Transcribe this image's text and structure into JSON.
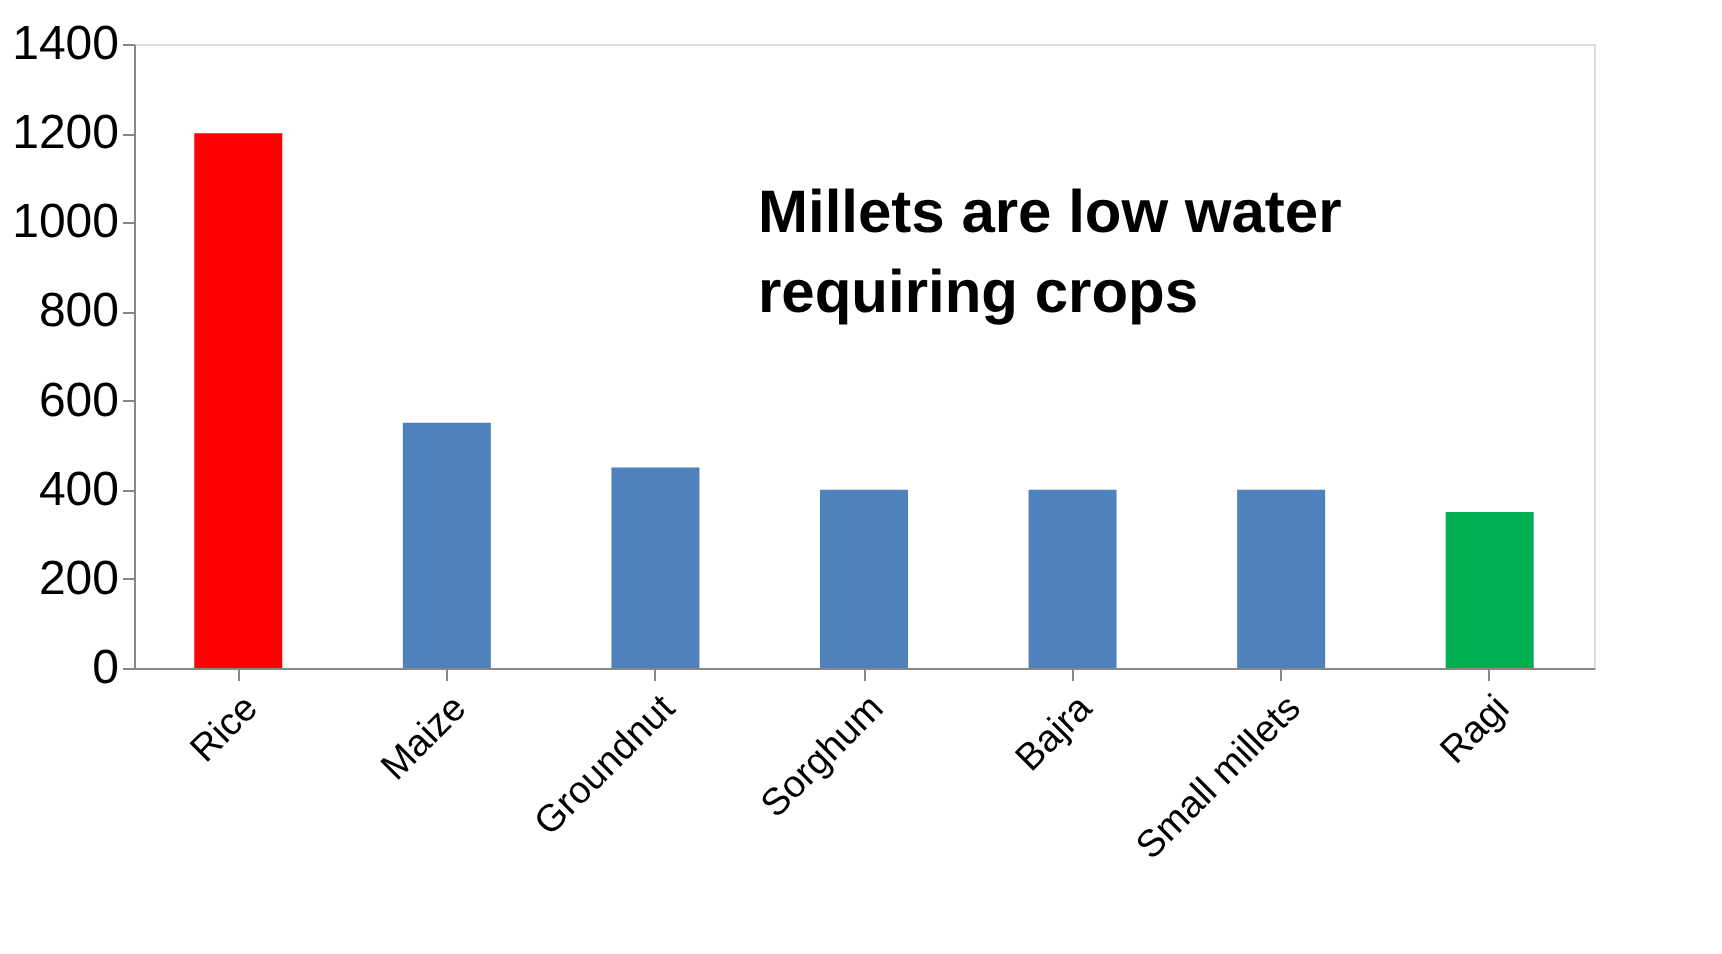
{
  "chart_data": {
    "type": "bar",
    "categories": [
      "Rice",
      "Maize",
      "Groundnut",
      "Sorghum",
      "Bajra",
      "Small millets",
      "Ragi"
    ],
    "values": [
      1200,
      550,
      450,
      400,
      400,
      400,
      350
    ],
    "colors": [
      "#ff0000",
      "#4f81bd",
      "#4f81bd",
      "#4f81bd",
      "#4f81bd",
      "#4f81bd",
      "#00b050"
    ],
    "ylim": [
      0,
      1400
    ],
    "yticks": [
      0,
      200,
      400,
      600,
      800,
      1000,
      1200,
      1400
    ],
    "grid": false,
    "annotations": [
      "Millets are low water requiring crops"
    ]
  }
}
